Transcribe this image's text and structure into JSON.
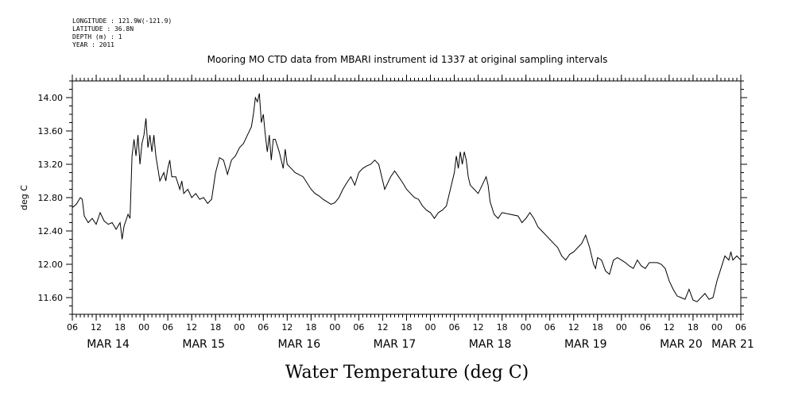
{
  "header": {
    "meta_lines": [
      "LONGITUDE : 121.9W(-121.9)",
      "LATITUDE : 36.8N",
      "DEPTH (m) : 1",
      "YEAR : 2011"
    ],
    "title": "Mooring MO CTD data from MBARI instrument id 1337 at original sampling intervals"
  },
  "chart_data": {
    "type": "line",
    "title": "Mooring MO CTD data from MBARI instrument id 1337 at original sampling intervals",
    "xlabel": "Water Temperature (deg C)",
    "ylabel": "deg C",
    "x_unit": "hours from MAR 14 06:00",
    "xlim": [
      0,
      168
    ],
    "ylim": [
      11.4,
      14.2
    ],
    "y_ticks": [
      "14.00",
      "13.60",
      "13.20",
      "12.80",
      "12.40",
      "12.00",
      "11.60"
    ],
    "y_tick_values": [
      14.0,
      13.6,
      13.2,
      12.8,
      12.4,
      12.0,
      11.6
    ],
    "x_hour_labels": [
      "06",
      "12",
      "18",
      "00",
      "06",
      "12",
      "18",
      "00",
      "06",
      "12",
      "18",
      "00",
      "06",
      "12",
      "18",
      "00",
      "06",
      "12",
      "18",
      "00",
      "06",
      "12",
      "18",
      "00",
      "06",
      "12",
      "18",
      "00",
      "06"
    ],
    "day_labels": [
      {
        "label": "MAR 14",
        "hour": 9
      },
      {
        "label": "MAR 15",
        "hour": 33
      },
      {
        "label": "MAR 16",
        "hour": 57
      },
      {
        "label": "MAR 17",
        "hour": 81
      },
      {
        "label": "MAR 18",
        "hour": 105
      },
      {
        "label": "MAR 19",
        "hour": 129
      },
      {
        "label": "MAR 20",
        "hour": 153
      },
      {
        "label": "MAR 21",
        "hour": 166
      }
    ],
    "series": [
      {
        "values": [
          [
            0,
            12.68
          ],
          [
            1,
            12.72
          ],
          [
            2,
            12.8
          ],
          [
            2.5,
            12.78
          ],
          [
            3,
            12.58
          ],
          [
            4,
            12.5
          ],
          [
            5,
            12.55
          ],
          [
            6,
            12.48
          ],
          [
            7,
            12.62
          ],
          [
            8,
            12.52
          ],
          [
            9,
            12.48
          ],
          [
            10,
            12.5
          ],
          [
            11,
            12.42
          ],
          [
            12,
            12.5
          ],
          [
            12.5,
            12.3
          ],
          [
            13,
            12.46
          ],
          [
            14,
            12.6
          ],
          [
            14.5,
            12.55
          ],
          [
            15,
            13.3
          ],
          [
            15.5,
            13.5
          ],
          [
            16,
            13.3
          ],
          [
            16.5,
            13.55
          ],
          [
            17,
            13.2
          ],
          [
            17.5,
            13.45
          ],
          [
            18,
            13.55
          ],
          [
            18.5,
            13.75
          ],
          [
            19,
            13.4
          ],
          [
            19.5,
            13.55
          ],
          [
            20,
            13.35
          ],
          [
            20.5,
            13.55
          ],
          [
            21,
            13.3
          ],
          [
            21.5,
            13.15
          ],
          [
            22,
            13.0
          ],
          [
            23,
            13.1
          ],
          [
            23.5,
            13.0
          ],
          [
            24,
            13.15
          ],
          [
            24.5,
            13.25
          ],
          [
            25,
            13.05
          ],
          [
            26,
            13.05
          ],
          [
            27,
            12.9
          ],
          [
            27.5,
            13.0
          ],
          [
            28,
            12.85
          ],
          [
            29,
            12.9
          ],
          [
            30,
            12.8
          ],
          [
            31,
            12.85
          ],
          [
            32,
            12.78
          ],
          [
            33,
            12.8
          ],
          [
            34,
            12.73
          ],
          [
            35,
            12.78
          ],
          [
            36,
            13.1
          ],
          [
            37,
            13.28
          ],
          [
            38,
            13.25
          ],
          [
            39,
            13.08
          ],
          [
            40,
            13.25
          ],
          [
            41,
            13.3
          ],
          [
            42,
            13.4
          ],
          [
            43,
            13.45
          ],
          [
            44,
            13.55
          ],
          [
            45,
            13.65
          ],
          [
            45.5,
            13.8
          ],
          [
            46,
            14.0
          ],
          [
            46.5,
            13.95
          ],
          [
            47,
            14.05
          ],
          [
            47.5,
            13.7
          ],
          [
            48,
            13.8
          ],
          [
            48.5,
            13.55
          ],
          [
            49,
            13.35
          ],
          [
            49.5,
            13.55
          ],
          [
            50,
            13.25
          ],
          [
            50.5,
            13.5
          ],
          [
            51,
            13.5
          ],
          [
            52,
            13.35
          ],
          [
            53,
            13.15
          ],
          [
            53.5,
            13.38
          ],
          [
            54,
            13.2
          ],
          [
            55,
            13.15
          ],
          [
            56,
            13.1
          ],
          [
            58,
            13.05
          ],
          [
            60,
            12.9
          ],
          [
            61,
            12.85
          ],
          [
            62,
            12.82
          ],
          [
            63,
            12.78
          ],
          [
            64,
            12.75
          ],
          [
            65,
            12.72
          ],
          [
            66,
            12.74
          ],
          [
            67,
            12.8
          ],
          [
            68,
            12.9
          ],
          [
            69,
            12.98
          ],
          [
            70,
            13.05
          ],
          [
            71,
            12.95
          ],
          [
            72,
            13.1
          ],
          [
            73,
            13.15
          ],
          [
            74,
            13.18
          ],
          [
            75,
            13.2
          ],
          [
            76,
            13.25
          ],
          [
            77,
            13.2
          ],
          [
            78,
            13.0
          ],
          [
            78.5,
            12.9
          ],
          [
            79,
            12.95
          ],
          [
            80,
            13.05
          ],
          [
            81,
            13.12
          ],
          [
            82,
            13.05
          ],
          [
            83,
            12.98
          ],
          [
            84,
            12.9
          ],
          [
            85,
            12.85
          ],
          [
            86,
            12.8
          ],
          [
            87,
            12.78
          ],
          [
            88,
            12.7
          ],
          [
            89,
            12.65
          ],
          [
            90,
            12.62
          ],
          [
            91,
            12.55
          ],
          [
            92,
            12.62
          ],
          [
            93,
            12.65
          ],
          [
            94,
            12.7
          ],
          [
            95,
            12.9
          ],
          [
            96,
            13.1
          ],
          [
            96.5,
            13.3
          ],
          [
            97,
            13.15
          ],
          [
            97.5,
            13.35
          ],
          [
            98,
            13.2
          ],
          [
            98.5,
            13.35
          ],
          [
            99,
            13.25
          ],
          [
            99.5,
            13.05
          ],
          [
            100,
            12.95
          ],
          [
            101,
            12.9
          ],
          [
            102,
            12.85
          ],
          [
            103,
            12.95
          ],
          [
            104,
            13.05
          ],
          [
            104.5,
            12.95
          ],
          [
            105,
            12.75
          ],
          [
            106,
            12.6
          ],
          [
            107,
            12.55
          ],
          [
            108,
            12.62
          ],
          [
            110,
            12.6
          ],
          [
            112,
            12.58
          ],
          [
            113,
            12.5
          ],
          [
            114,
            12.55
          ],
          [
            115,
            12.62
          ],
          [
            116,
            12.55
          ],
          [
            117,
            12.45
          ],
          [
            118,
            12.4
          ],
          [
            119,
            12.35
          ],
          [
            120,
            12.3
          ],
          [
            121,
            12.25
          ],
          [
            122,
            12.2
          ],
          [
            123,
            12.1
          ],
          [
            124,
            12.05
          ],
          [
            125,
            12.12
          ],
          [
            126,
            12.15
          ],
          [
            127,
            12.2
          ],
          [
            128,
            12.25
          ],
          [
            129,
            12.35
          ],
          [
            130,
            12.2
          ],
          [
            131,
            12.0
          ],
          [
            131.5,
            11.95
          ],
          [
            132,
            12.08
          ],
          [
            133,
            12.05
          ],
          [
            134,
            11.92
          ],
          [
            135,
            11.88
          ],
          [
            136,
            12.05
          ],
          [
            137,
            12.08
          ],
          [
            138,
            12.05
          ],
          [
            139,
            12.02
          ],
          [
            140,
            11.98
          ],
          [
            141,
            11.95
          ],
          [
            142,
            12.05
          ],
          [
            143,
            11.98
          ],
          [
            144,
            11.95
          ],
          [
            145,
            12.02
          ],
          [
            147,
            12.02
          ],
          [
            148,
            12.0
          ],
          [
            149,
            11.95
          ],
          [
            150,
            11.8
          ],
          [
            151,
            11.7
          ],
          [
            152,
            11.62
          ],
          [
            153,
            11.6
          ],
          [
            154,
            11.58
          ],
          [
            155,
            11.7
          ],
          [
            156,
            11.57
          ],
          [
            157,
            11.55
          ],
          [
            158,
            11.6
          ],
          [
            159,
            11.65
          ],
          [
            160,
            11.58
          ],
          [
            161,
            11.6
          ],
          [
            162,
            11.8
          ],
          [
            163,
            11.95
          ],
          [
            164,
            12.1
          ],
          [
            165,
            12.05
          ],
          [
            165.5,
            12.15
          ],
          [
            166,
            12.05
          ],
          [
            167,
            12.1
          ],
          [
            168,
            12.05
          ]
        ]
      }
    ]
  }
}
